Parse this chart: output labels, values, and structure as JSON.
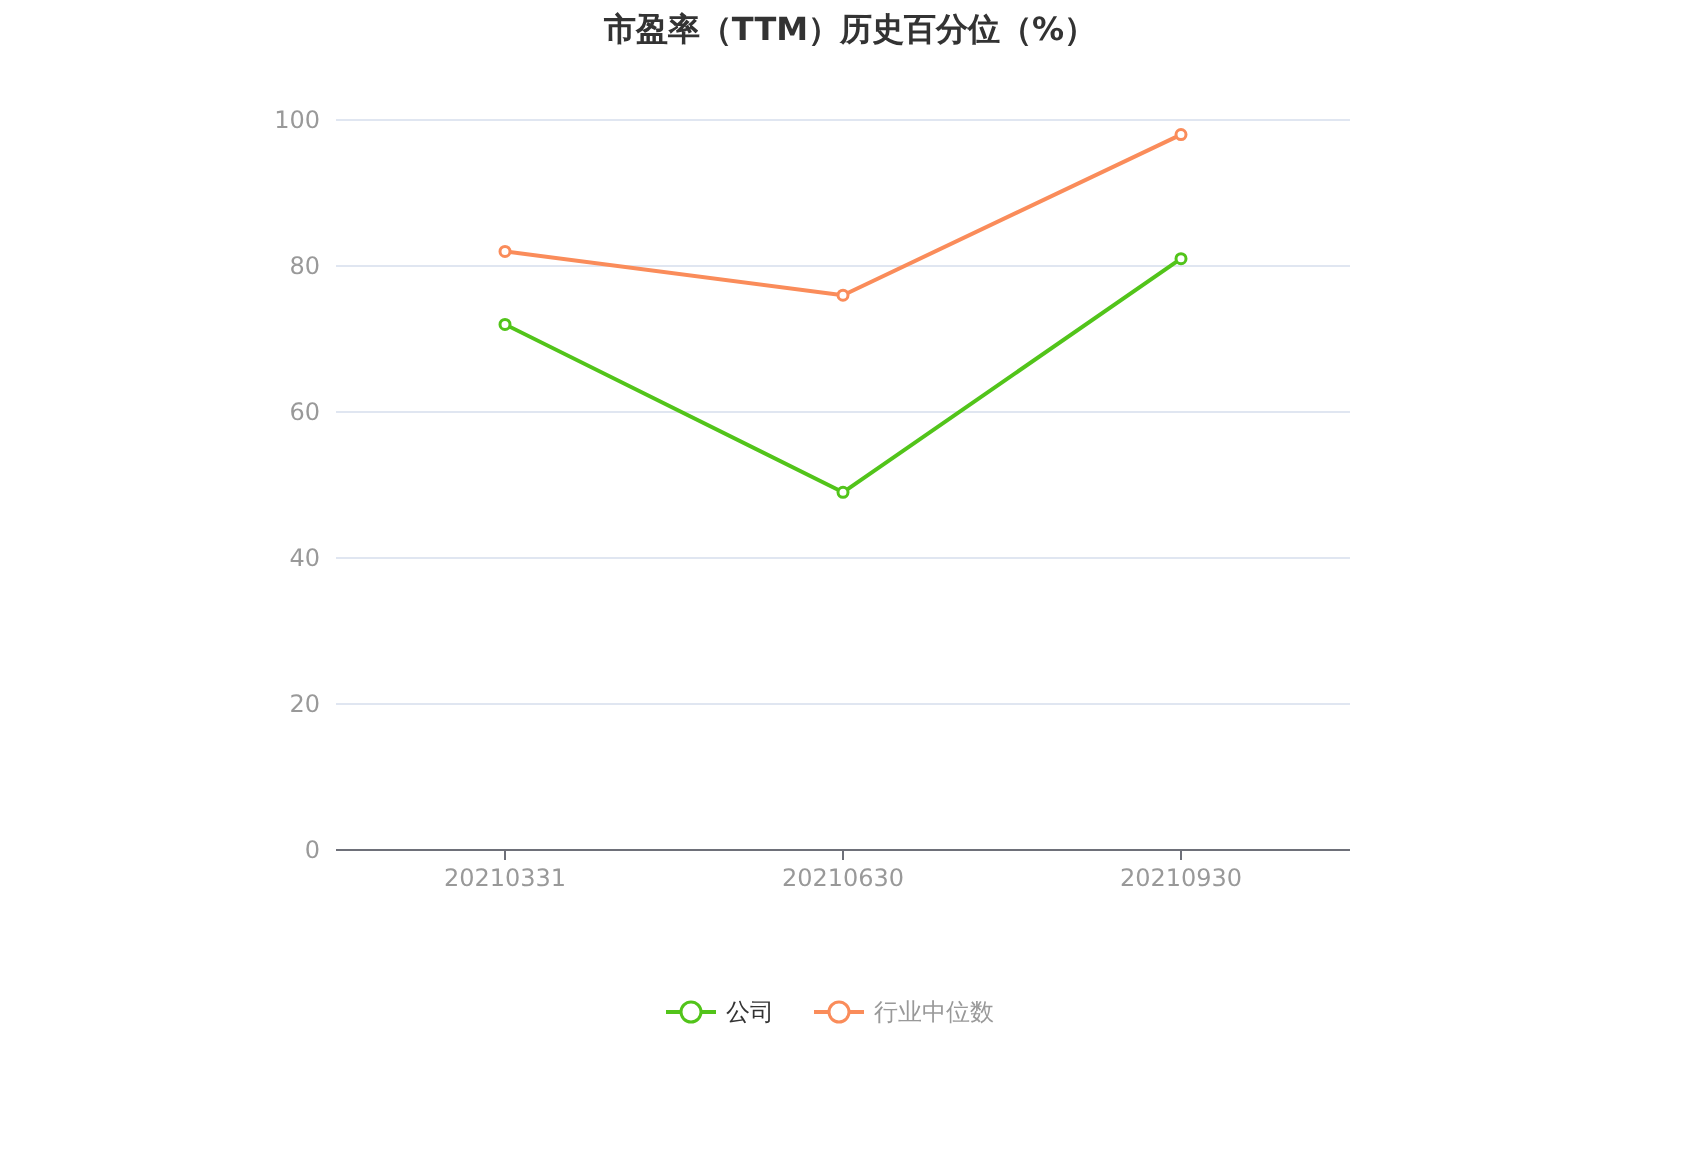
{
  "chart_data": {
    "type": "line",
    "title": "市盈率（TTM）历史百分位（%）",
    "categories": [
      "20210331",
      "20210630",
      "20210930"
    ],
    "series": [
      {
        "name": "公司",
        "color": "#52c41a",
        "values": [
          72,
          49,
          81
        ]
      },
      {
        "name": "行业中位数",
        "color": "#fa8c5a",
        "values": [
          82,
          76,
          98
        ]
      }
    ],
    "ylim": [
      0,
      100
    ],
    "yticks": [
      0,
      20,
      40,
      60,
      80,
      100
    ],
    "grid": "y",
    "legend": "bottom",
    "marker": "circle",
    "line_style": "solid"
  }
}
